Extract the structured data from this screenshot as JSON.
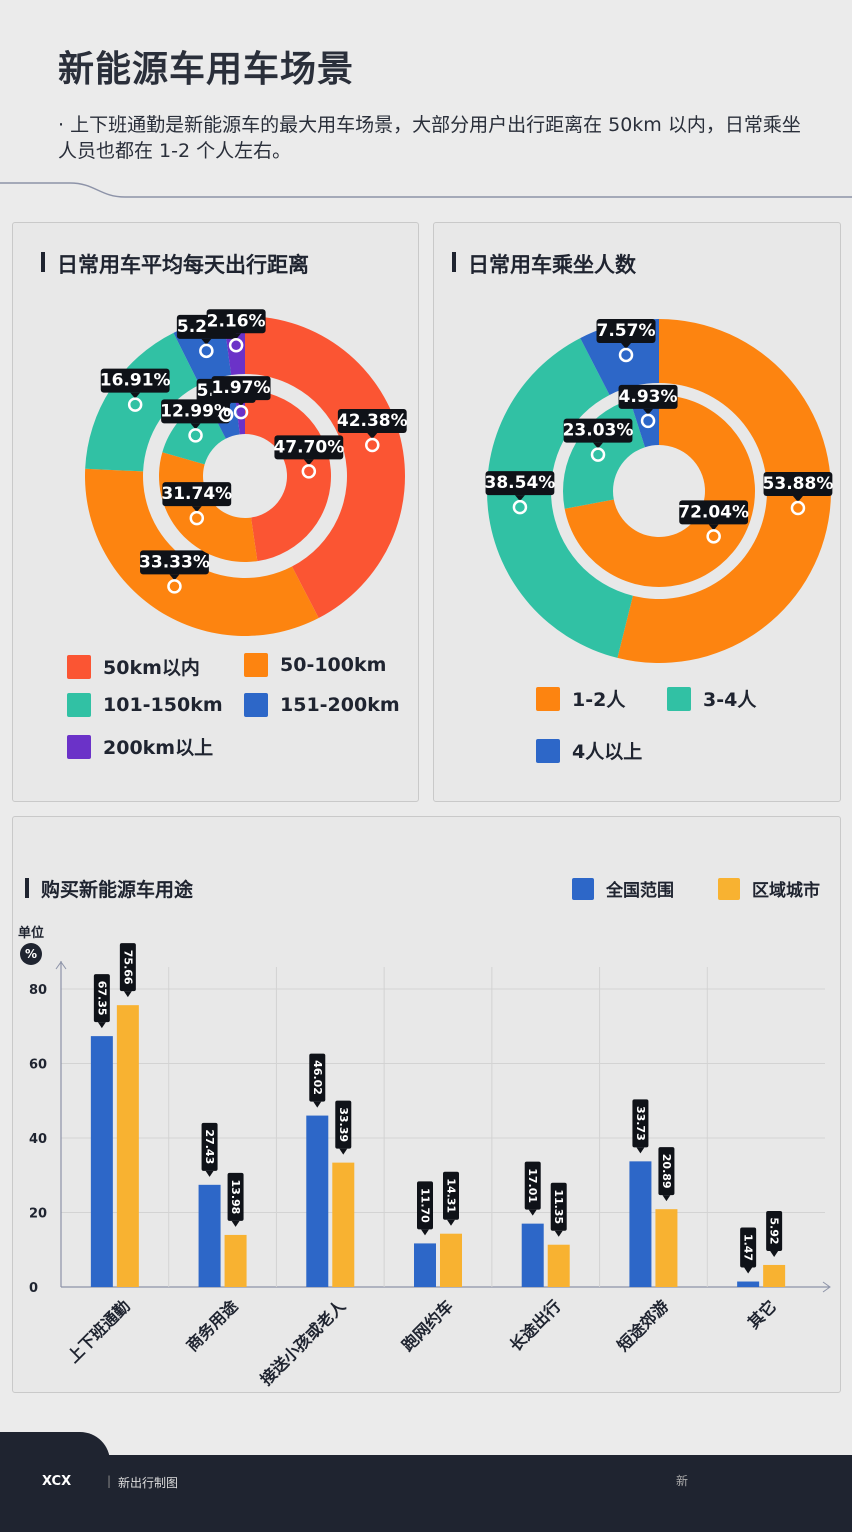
{
  "header": {
    "title": "新能源车用车场景",
    "subtitle": "· 上下班通勤是新能源车的最大用车场景，大部分用户出行距离在 50km 以内，日常乘坐人员也都在 1-2 个人左右。"
  },
  "chart_data": [
    {
      "type": "pie",
      "title": "日常用车平均每天出行距离",
      "categories": [
        "50km以内",
        "50-100km",
        "101-150km",
        "151-200km",
        "200km以上"
      ],
      "colors": [
        "#fb5533",
        "#fd8410",
        "#31c1a4",
        "#2d67c8",
        "#6b32c8"
      ],
      "series": [
        {
          "ring": "outer",
          "values": [
            42.38,
            33.33,
            16.91,
            5.21,
            2.16
          ],
          "labels": [
            "42.38%",
            "33.33%",
            "16.91%",
            "5.21%",
            "2.16%"
          ]
        },
        {
          "ring": "inner",
          "values": [
            47.7,
            31.74,
            12.99,
            5.59,
            1.97
          ],
          "labels": [
            "47.70%",
            "31.74%",
            "12.99%",
            "5.59%",
            "1.97%"
          ]
        }
      ],
      "legend": "bottom"
    },
    {
      "type": "pie",
      "title": "日常用车乘坐人数",
      "categories": [
        "1-2人",
        "3-4人",
        "4人以上"
      ],
      "colors": [
        "#fd8410",
        "#31c1a4",
        "#2d67c8"
      ],
      "series": [
        {
          "ring": "outer",
          "values": [
            53.88,
            38.54,
            7.57
          ],
          "labels": [
            "53.88%",
            "38.54%",
            "7.57%"
          ]
        },
        {
          "ring": "inner",
          "values": [
            72.04,
            23.03,
            4.93
          ],
          "labels": [
            "72.04%",
            "23.03%",
            "4.93%"
          ]
        }
      ],
      "legend": "bottom"
    },
    {
      "type": "bar",
      "title": "购买新能源车用途",
      "unit_label": "单位",
      "unit": "%",
      "categories": [
        "上下班通勤",
        "商务用途",
        "接送小孩或老人",
        "跑网约车",
        "长途出行",
        "短途郊游",
        "其它"
      ],
      "series": [
        {
          "name": "全国范围",
          "color": "#2d67c8",
          "values": [
            67.35,
            27.43,
            46.02,
            11.7,
            17.01,
            33.73,
            1.47
          ],
          "labels": [
            "67.35",
            "27.43",
            "46.02",
            "11.70",
            "17.01",
            "33.73",
            "1.47"
          ]
        },
        {
          "name": "区域城市",
          "color": "#f8b231",
          "values": [
            75.66,
            13.98,
            33.39,
            14.31,
            11.35,
            20.89,
            5.92
          ],
          "labels": [
            "75.66",
            "13.98",
            "33.39",
            "14.31",
            "11.35",
            "20.89",
            "5.92"
          ]
        }
      ],
      "ylim": [
        0,
        80
      ],
      "yticks": [
        0,
        20,
        40,
        60,
        80
      ],
      "legend": "top-right",
      "grid": true
    }
  ],
  "footer": {
    "brand": "XCX",
    "separator": "|",
    "label": "新出行制图",
    "watermark": "新"
  }
}
